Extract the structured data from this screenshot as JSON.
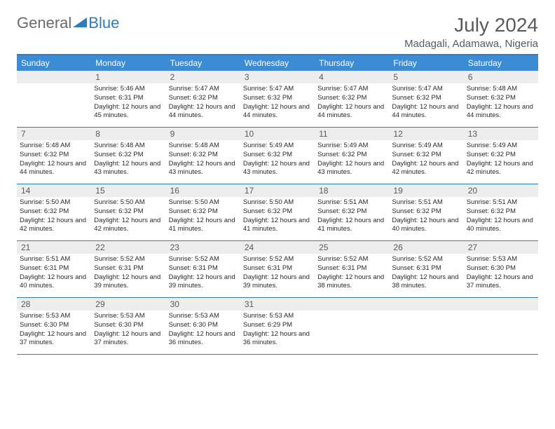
{
  "logo": {
    "text_general": "General",
    "text_blue": "Blue"
  },
  "title": "July 2024",
  "location": "Madagali, Adamawa, Nigeria",
  "colors": {
    "header_bar": "#3b8cd4",
    "border": "#2b7cc0",
    "daynum_bg": "#ededed",
    "text_muted": "#5a5a5a"
  },
  "weekdays": [
    "Sunday",
    "Monday",
    "Tuesday",
    "Wednesday",
    "Thursday",
    "Friday",
    "Saturday"
  ],
  "weeks": [
    [
      {
        "day": "",
        "sunrise": "",
        "sunset": "",
        "daylight": ""
      },
      {
        "day": "1",
        "sunrise": "Sunrise: 5:46 AM",
        "sunset": "Sunset: 6:31 PM",
        "daylight": "Daylight: 12 hours and 45 minutes."
      },
      {
        "day": "2",
        "sunrise": "Sunrise: 5:47 AM",
        "sunset": "Sunset: 6:32 PM",
        "daylight": "Daylight: 12 hours and 44 minutes."
      },
      {
        "day": "3",
        "sunrise": "Sunrise: 5:47 AM",
        "sunset": "Sunset: 6:32 PM",
        "daylight": "Daylight: 12 hours and 44 minutes."
      },
      {
        "day": "4",
        "sunrise": "Sunrise: 5:47 AM",
        "sunset": "Sunset: 6:32 PM",
        "daylight": "Daylight: 12 hours and 44 minutes."
      },
      {
        "day": "5",
        "sunrise": "Sunrise: 5:47 AM",
        "sunset": "Sunset: 6:32 PM",
        "daylight": "Daylight: 12 hours and 44 minutes."
      },
      {
        "day": "6",
        "sunrise": "Sunrise: 5:48 AM",
        "sunset": "Sunset: 6:32 PM",
        "daylight": "Daylight: 12 hours and 44 minutes."
      }
    ],
    [
      {
        "day": "7",
        "sunrise": "Sunrise: 5:48 AM",
        "sunset": "Sunset: 6:32 PM",
        "daylight": "Daylight: 12 hours and 44 minutes."
      },
      {
        "day": "8",
        "sunrise": "Sunrise: 5:48 AM",
        "sunset": "Sunset: 6:32 PM",
        "daylight": "Daylight: 12 hours and 43 minutes."
      },
      {
        "day": "9",
        "sunrise": "Sunrise: 5:48 AM",
        "sunset": "Sunset: 6:32 PM",
        "daylight": "Daylight: 12 hours and 43 minutes."
      },
      {
        "day": "10",
        "sunrise": "Sunrise: 5:49 AM",
        "sunset": "Sunset: 6:32 PM",
        "daylight": "Daylight: 12 hours and 43 minutes."
      },
      {
        "day": "11",
        "sunrise": "Sunrise: 5:49 AM",
        "sunset": "Sunset: 6:32 PM",
        "daylight": "Daylight: 12 hours and 43 minutes."
      },
      {
        "day": "12",
        "sunrise": "Sunrise: 5:49 AM",
        "sunset": "Sunset: 6:32 PM",
        "daylight": "Daylight: 12 hours and 42 minutes."
      },
      {
        "day": "13",
        "sunrise": "Sunrise: 5:49 AM",
        "sunset": "Sunset: 6:32 PM",
        "daylight": "Daylight: 12 hours and 42 minutes."
      }
    ],
    [
      {
        "day": "14",
        "sunrise": "Sunrise: 5:50 AM",
        "sunset": "Sunset: 6:32 PM",
        "daylight": "Daylight: 12 hours and 42 minutes."
      },
      {
        "day": "15",
        "sunrise": "Sunrise: 5:50 AM",
        "sunset": "Sunset: 6:32 PM",
        "daylight": "Daylight: 12 hours and 42 minutes."
      },
      {
        "day": "16",
        "sunrise": "Sunrise: 5:50 AM",
        "sunset": "Sunset: 6:32 PM",
        "daylight": "Daylight: 12 hours and 41 minutes."
      },
      {
        "day": "17",
        "sunrise": "Sunrise: 5:50 AM",
        "sunset": "Sunset: 6:32 PM",
        "daylight": "Daylight: 12 hours and 41 minutes."
      },
      {
        "day": "18",
        "sunrise": "Sunrise: 5:51 AM",
        "sunset": "Sunset: 6:32 PM",
        "daylight": "Daylight: 12 hours and 41 minutes."
      },
      {
        "day": "19",
        "sunrise": "Sunrise: 5:51 AM",
        "sunset": "Sunset: 6:32 PM",
        "daylight": "Daylight: 12 hours and 40 minutes."
      },
      {
        "day": "20",
        "sunrise": "Sunrise: 5:51 AM",
        "sunset": "Sunset: 6:32 PM",
        "daylight": "Daylight: 12 hours and 40 minutes."
      }
    ],
    [
      {
        "day": "21",
        "sunrise": "Sunrise: 5:51 AM",
        "sunset": "Sunset: 6:31 PM",
        "daylight": "Daylight: 12 hours and 40 minutes."
      },
      {
        "day": "22",
        "sunrise": "Sunrise: 5:52 AM",
        "sunset": "Sunset: 6:31 PM",
        "daylight": "Daylight: 12 hours and 39 minutes."
      },
      {
        "day": "23",
        "sunrise": "Sunrise: 5:52 AM",
        "sunset": "Sunset: 6:31 PM",
        "daylight": "Daylight: 12 hours and 39 minutes."
      },
      {
        "day": "24",
        "sunrise": "Sunrise: 5:52 AM",
        "sunset": "Sunset: 6:31 PM",
        "daylight": "Daylight: 12 hours and 39 minutes."
      },
      {
        "day": "25",
        "sunrise": "Sunrise: 5:52 AM",
        "sunset": "Sunset: 6:31 PM",
        "daylight": "Daylight: 12 hours and 38 minutes."
      },
      {
        "day": "26",
        "sunrise": "Sunrise: 5:52 AM",
        "sunset": "Sunset: 6:31 PM",
        "daylight": "Daylight: 12 hours and 38 minutes."
      },
      {
        "day": "27",
        "sunrise": "Sunrise: 5:53 AM",
        "sunset": "Sunset: 6:30 PM",
        "daylight": "Daylight: 12 hours and 37 minutes."
      }
    ],
    [
      {
        "day": "28",
        "sunrise": "Sunrise: 5:53 AM",
        "sunset": "Sunset: 6:30 PM",
        "daylight": "Daylight: 12 hours and 37 minutes."
      },
      {
        "day": "29",
        "sunrise": "Sunrise: 5:53 AM",
        "sunset": "Sunset: 6:30 PM",
        "daylight": "Daylight: 12 hours and 37 minutes."
      },
      {
        "day": "30",
        "sunrise": "Sunrise: 5:53 AM",
        "sunset": "Sunset: 6:30 PM",
        "daylight": "Daylight: 12 hours and 36 minutes."
      },
      {
        "day": "31",
        "sunrise": "Sunrise: 5:53 AM",
        "sunset": "Sunset: 6:29 PM",
        "daylight": "Daylight: 12 hours and 36 minutes."
      },
      {
        "day": "",
        "sunrise": "",
        "sunset": "",
        "daylight": ""
      },
      {
        "day": "",
        "sunrise": "",
        "sunset": "",
        "daylight": ""
      },
      {
        "day": "",
        "sunrise": "",
        "sunset": "",
        "daylight": ""
      }
    ]
  ]
}
